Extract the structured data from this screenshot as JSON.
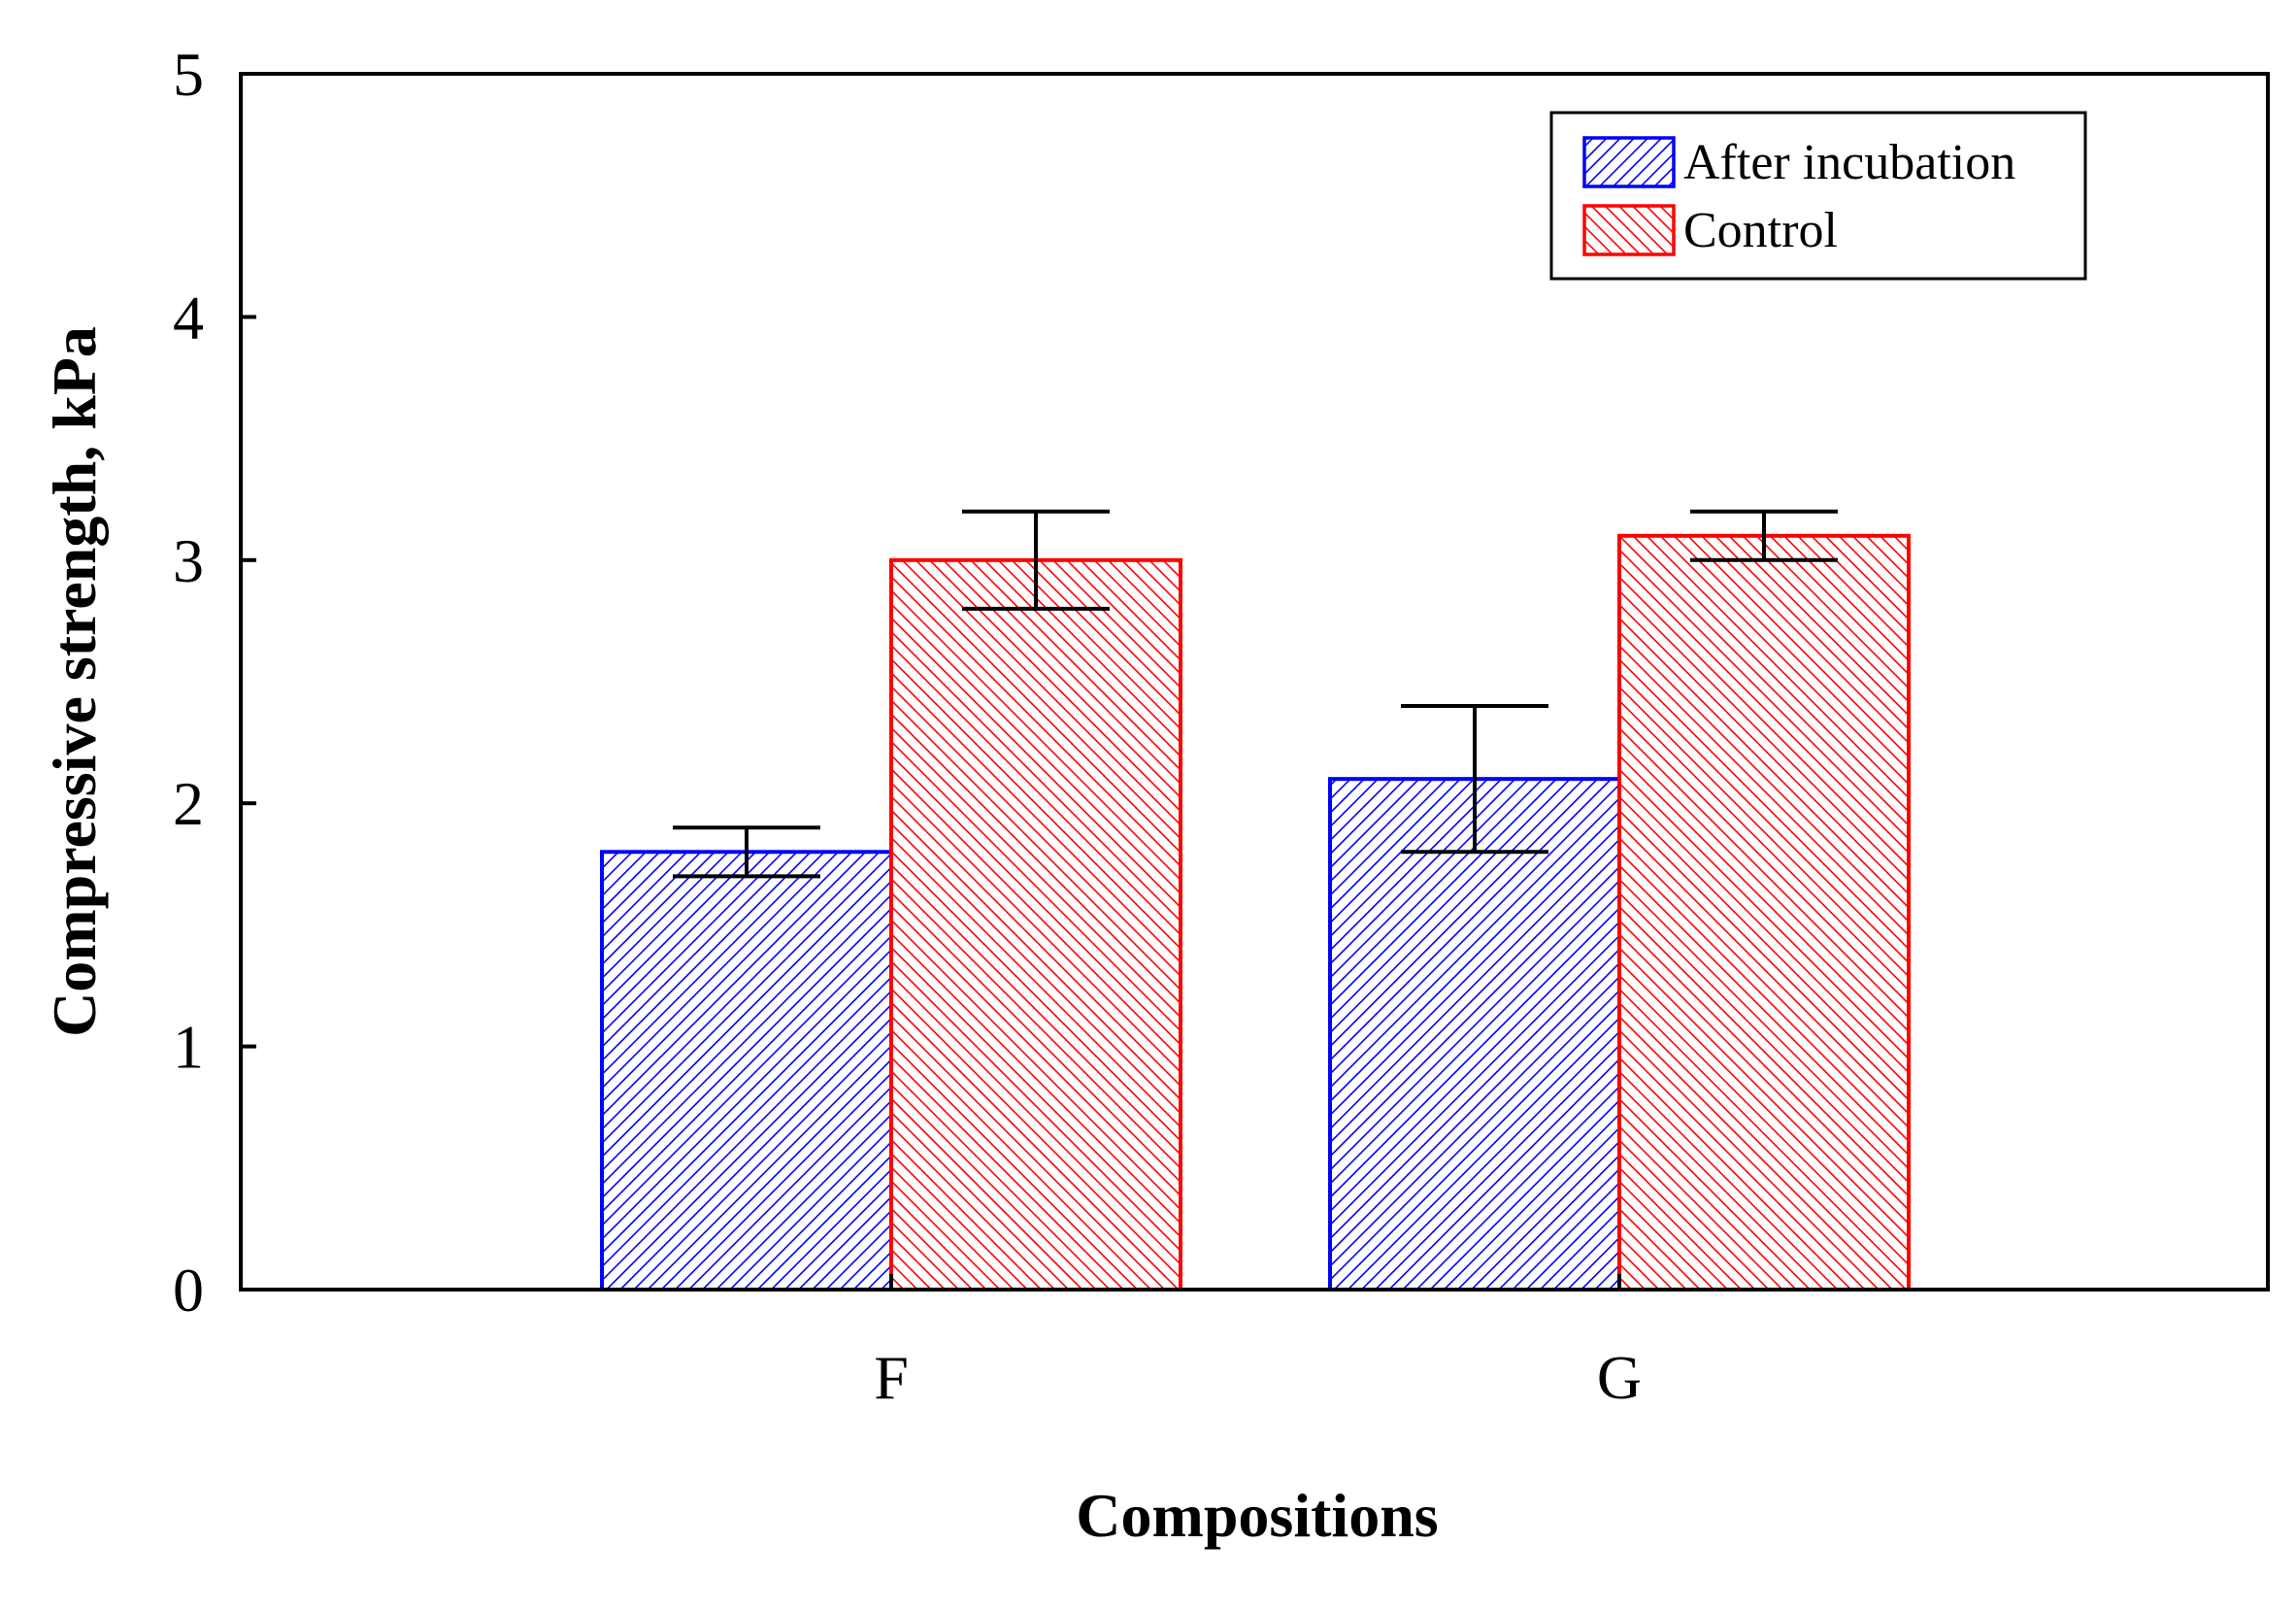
{
  "chart_data": {
    "type": "bar",
    "title": "",
    "xlabel": "Compositions",
    "ylabel": "Compressive strength, kPa",
    "categories": [
      "F",
      "G"
    ],
    "ylim": [
      0,
      5
    ],
    "yticks": [
      "0",
      "1",
      "2",
      "3",
      "4",
      "5"
    ],
    "grid": false,
    "legend_position": "top-right",
    "bar_fill": "diagonal-hatch",
    "series": [
      {
        "name": "After incubation",
        "color": "#0000ff",
        "values": [
          1.8,
          2.1
        ],
        "error_low": [
          1.7,
          1.8
        ],
        "error_high": [
          1.9,
          2.4
        ]
      },
      {
        "name": "Control",
        "color": "#ff0000",
        "values": [
          3.0,
          3.1
        ],
        "error_low": [
          2.8,
          3.0
        ],
        "error_high": [
          3.2,
          3.2
        ]
      }
    ]
  }
}
